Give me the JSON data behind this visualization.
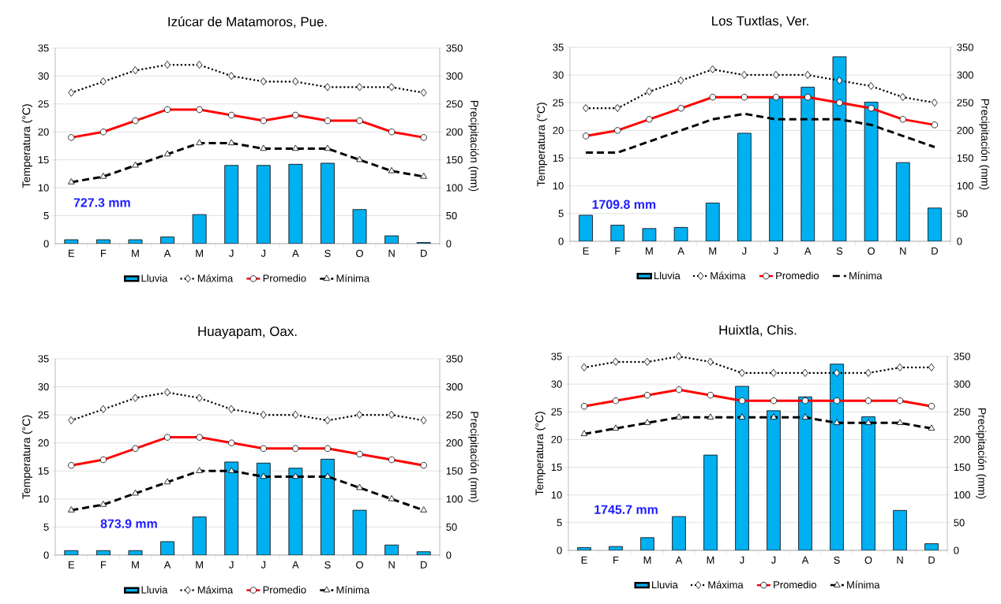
{
  "chart_data": [
    {
      "type": "bar",
      "title": "Izúcar de Matamoros, Pue.",
      "ylabel": "Temperatura (°C)",
      "y2label": "Precipitación (mm)",
      "categories": [
        "E",
        "F",
        "M",
        "A",
        "M",
        "J",
        "J",
        "A",
        "S",
        "O",
        "N",
        "D"
      ],
      "ylim": [
        0,
        35
      ],
      "yticks": [
        0,
        5,
        10,
        15,
        20,
        25,
        30,
        35
      ],
      "y2lim": [
        0,
        350
      ],
      "y2ticks": [
        0,
        50,
        100,
        150,
        200,
        250,
        300,
        350
      ],
      "grid": "y",
      "legend": "bottom",
      "annotations": [
        "727.3 mm"
      ],
      "series": [
        {
          "name": "Lluvia",
          "axis": "y2",
          "color": "#00b0f0",
          "values": [
            7,
            7,
            7,
            12,
            52,
            140,
            140,
            142,
            144,
            61,
            14,
            2
          ]
        },
        {
          "name": "Máxima",
          "type": "line",
          "color": "#000000",
          "marker": "diamond",
          "line_style": "dotted",
          "values": [
            27,
            29,
            31,
            32,
            32,
            30,
            29,
            29,
            28,
            28,
            28,
            27
          ]
        },
        {
          "name": "Promedio",
          "type": "line",
          "color": "#ff0000",
          "marker": "circle",
          "line_style": "solid",
          "values": [
            19,
            20,
            22,
            24,
            24,
            23,
            22,
            23,
            22,
            22,
            20,
            19
          ]
        },
        {
          "name": "Mínima",
          "type": "line",
          "color": "#000000",
          "marker": "triangle",
          "line_style": "dashed",
          "values": [
            11,
            12,
            14,
            16,
            18,
            18,
            17,
            17,
            17,
            15,
            13,
            12
          ]
        }
      ]
    },
    {
      "type": "bar",
      "title": "Los Tuxtlas, Ver.",
      "ylabel": "Temperatura (°C)",
      "y2label": "Precipitación (mm)",
      "categories": [
        "E",
        "F",
        "M",
        "A",
        "M",
        "J",
        "J",
        "A",
        "S",
        "O",
        "N",
        "D"
      ],
      "ylim": [
        0,
        35
      ],
      "yticks": [
        0,
        5,
        10,
        15,
        20,
        25,
        30,
        35
      ],
      "y2lim": [
        0,
        350
      ],
      "y2ticks": [
        0,
        50,
        100,
        150,
        200,
        250,
        300,
        350
      ],
      "grid": "y",
      "legend": "bottom",
      "annotations": [
        "1709.8 mm"
      ],
      "series": [
        {
          "name": "Lluvia",
          "axis": "y2",
          "color": "#00b0f0",
          "values": [
            47,
            29,
            23,
            25,
            69,
            195,
            258,
            278,
            333,
            251,
            142,
            60
          ]
        },
        {
          "name": "Máxima",
          "type": "line",
          "color": "#000000",
          "marker": "diamond",
          "line_style": "dotted",
          "values": [
            24,
            24,
            27,
            29,
            31,
            30,
            30,
            30,
            29,
            28,
            26,
            25
          ]
        },
        {
          "name": "Promedio",
          "type": "line",
          "color": "#ff0000",
          "marker": "circle",
          "line_style": "solid",
          "values": [
            19,
            20,
            22,
            24,
            26,
            26,
            26,
            26,
            25,
            24,
            22,
            21
          ]
        },
        {
          "name": "Mínima",
          "type": "line",
          "color": "#000000",
          "marker": "none",
          "line_style": "dashed",
          "values": [
            16,
            16,
            18,
            20,
            22,
            23,
            22,
            22,
            22,
            21,
            19,
            17
          ]
        }
      ]
    },
    {
      "type": "bar",
      "title": "Huayapam, Oax.",
      "ylabel": "Temperatura (°C)",
      "y2label": "Precipitación (mm)",
      "categories": [
        "E",
        "F",
        "M",
        "A",
        "M",
        "J",
        "J",
        "A",
        "S",
        "O",
        "N",
        "D"
      ],
      "ylim": [
        0,
        35
      ],
      "yticks": [
        0,
        5,
        10,
        15,
        20,
        25,
        30,
        35
      ],
      "y2lim": [
        0,
        350
      ],
      "y2ticks": [
        0,
        50,
        100,
        150,
        200,
        250,
        300,
        350
      ],
      "grid": "y",
      "legend": "bottom",
      "annotations": [
        "873.9 mm"
      ],
      "series": [
        {
          "name": "Lluvia",
          "axis": "y2",
          "color": "#00b0f0",
          "values": [
            8,
            8,
            8,
            24,
            68,
            166,
            164,
            155,
            171,
            80,
            18,
            6
          ]
        },
        {
          "name": "Máxima",
          "type": "line",
          "color": "#000000",
          "marker": "diamond",
          "line_style": "dotted",
          "values": [
            24,
            26,
            28,
            29,
            28,
            26,
            25,
            25,
            24,
            25,
            25,
            24
          ]
        },
        {
          "name": "Promedio",
          "type": "line",
          "color": "#ff0000",
          "marker": "circle",
          "line_style": "solid",
          "values": [
            16,
            17,
            19,
            21,
            21,
            20,
            19,
            19,
            19,
            18,
            17,
            16
          ]
        },
        {
          "name": "Mínima",
          "type": "line",
          "color": "#000000",
          "marker": "triangle",
          "line_style": "dashed",
          "values": [
            8,
            9,
            11,
            13,
            15,
            15,
            14,
            14,
            14,
            12,
            10,
            8
          ]
        }
      ]
    },
    {
      "type": "bar",
      "title": "Huixtla, Chis.",
      "ylabel": "Temperatura (°C)",
      "y2label": "Precipitación (mm)",
      "categories": [
        "E",
        "F",
        "M",
        "A",
        "M",
        "J",
        "J",
        "A",
        "S",
        "O",
        "N",
        "D"
      ],
      "ylim": [
        0,
        35
      ],
      "yticks": [
        0,
        5,
        10,
        15,
        20,
        25,
        30,
        35
      ],
      "y2lim": [
        0,
        350
      ],
      "y2ticks": [
        0,
        50,
        100,
        150,
        200,
        250,
        300,
        350
      ],
      "grid": "y",
      "legend": "bottom",
      "annotations": [
        "1745.7 mm"
      ],
      "series": [
        {
          "name": "Lluvia",
          "axis": "y2",
          "color": "#00b0f0",
          "values": [
            5,
            7,
            23,
            61,
            172,
            296,
            252,
            277,
            336,
            241,
            72,
            12
          ]
        },
        {
          "name": "Máxima",
          "type": "line",
          "color": "#000000",
          "marker": "diamond",
          "line_style": "dotted",
          "values": [
            33,
            34,
            34,
            35,
            34,
            32,
            32,
            32,
            32,
            32,
            33,
            33
          ]
        },
        {
          "name": "Promedio",
          "type": "line",
          "color": "#ff0000",
          "marker": "circle",
          "line_style": "solid",
          "values": [
            26,
            27,
            28,
            29,
            28,
            27,
            27,
            27,
            27,
            27,
            27,
            26
          ]
        },
        {
          "name": "Mínima",
          "type": "line",
          "color": "#000000",
          "marker": "triangle",
          "line_style": "dashed",
          "values": [
            21,
            22,
            23,
            24,
            24,
            24,
            24,
            24,
            23,
            23,
            23,
            22
          ]
        }
      ]
    }
  ]
}
